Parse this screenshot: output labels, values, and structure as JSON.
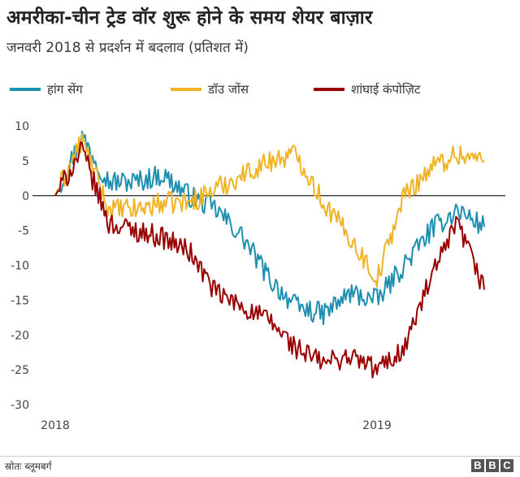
{
  "header": {
    "title": "अमरीका-चीन ट्रेड वॉर शुरू होने के समय शेयर बाज़ार",
    "subtitle": "जनवरी 2018 से प्रदर्शन में बदलाव (प्रतिशत में)"
  },
  "footer": {
    "source": "स्रोतः ब्लूमबर्ग",
    "logo": [
      "B",
      "B",
      "C"
    ]
  },
  "chart_data": {
    "type": "line",
    "title": "अमरीका-चीन ट्रेड वॉर शुरू होने के समय शेयर बाज़ार",
    "subtitle": "जनवरी 2018 से प्रदर्शन में बदलाव (प्रतिशत में)",
    "xlabel": "",
    "ylabel": "",
    "x_tick_labels": [
      "2018",
      "2019"
    ],
    "y_ticks": [
      10,
      5,
      0,
      -5,
      -10,
      -15,
      -20,
      -25,
      -30
    ],
    "ylim": [
      -30,
      10
    ],
    "grid": false,
    "zero_line": true,
    "legend_position": "top-left",
    "x": [
      "2018-01",
      "2018-02",
      "2018-03",
      "2018-04",
      "2018-05",
      "2018-06",
      "2018-07",
      "2018-08",
      "2018-09",
      "2018-10",
      "2018-11",
      "2018-12",
      "2019-01",
      "2019-02",
      "2019-03",
      "2019-04",
      "2019-05"
    ],
    "series": [
      {
        "name": "हांग सेंग",
        "color": "#1f8fb0",
        "values": [
          0,
          8.5,
          2,
          2,
          3,
          0,
          -2,
          -6,
          -12,
          -16,
          -17,
          -14,
          -15,
          -10,
          -5,
          -2,
          -4.5
        ]
      },
      {
        "name": "डॉउ जोंस",
        "color": "#f0b323",
        "values": [
          0,
          8,
          -2,
          -2,
          -1,
          -1,
          1,
          3,
          5,
          6,
          -1,
          -6,
          -12,
          0,
          4,
          6,
          5
        ]
      },
      {
        "name": "शांघाई कंपोज़िट",
        "color": "#990000",
        "values": [
          0,
          6.5,
          -4,
          -5,
          -6,
          -8,
          -14,
          -16,
          -18,
          -22,
          -24,
          -23,
          -25,
          -22,
          -12,
          -4,
          -13.5
        ]
      }
    ]
  }
}
